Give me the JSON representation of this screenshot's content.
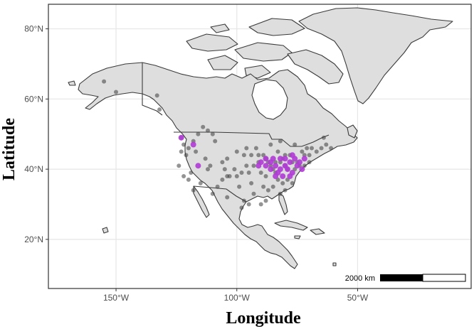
{
  "chart_data": {
    "type": "scatter",
    "map": "North America",
    "xlabel": "Longitude",
    "ylabel": "Latitude",
    "xlim": [
      -178,
      -3
    ],
    "ylim": [
      6,
      87
    ],
    "x_ticks": [
      {
        "value": -150,
        "label": "150°W"
      },
      {
        "value": -100,
        "label": "100°W"
      },
      {
        "value": -50,
        "label": "50°W"
      }
    ],
    "y_ticks": [
      {
        "value": 20,
        "label": "20°N"
      },
      {
        "value": 40,
        "label": "40°N"
      },
      {
        "value": 60,
        "label": "60°N"
      },
      {
        "value": 80,
        "label": "80°N"
      }
    ],
    "grid": true,
    "legend": "none",
    "colors": {
      "background": "#ffffff",
      "land": "#dedede",
      "outline": "#3a3a3a",
      "grid": "#e6e6e6",
      "highlight": "#b03ad6",
      "points": "#3c3c3c"
    },
    "scale_bar": {
      "label": "2000 km"
    },
    "series": [
      {
        "color": "#3c3c3c",
        "points": [
          [
            -155,
            65
          ],
          [
            -150,
            62
          ],
          [
            -133,
            61
          ],
          [
            -132,
            57
          ],
          [
            -123,
            49
          ],
          [
            -122,
            47
          ],
          [
            -123,
            45
          ],
          [
            -121,
            44
          ],
          [
            -120,
            46
          ],
          [
            -118,
            48
          ],
          [
            -116,
            50
          ],
          [
            -114,
            52
          ],
          [
            -112,
            51
          ],
          [
            -110,
            50
          ],
          [
            -109,
            48
          ],
          [
            -117,
            45
          ],
          [
            -113,
            43
          ],
          [
            -111,
            41
          ],
          [
            -112,
            40
          ],
          [
            -105,
            40
          ],
          [
            -106,
            42
          ],
          [
            -104,
            43
          ],
          [
            -101,
            40
          ],
          [
            -103,
            38
          ],
          [
            -99,
            35
          ],
          [
            -97,
            44
          ],
          [
            -94,
            44
          ],
          [
            -96,
            46
          ],
          [
            -92,
            46
          ],
          [
            -93,
            41
          ],
          [
            -91,
            42
          ],
          [
            -89,
            44
          ],
          [
            -88,
            43
          ],
          [
            -87,
            42
          ],
          [
            -90,
            39
          ],
          [
            -88,
            38
          ],
          [
            -86,
            41
          ],
          [
            -85,
            40
          ],
          [
            -84,
            42
          ],
          [
            -83,
            45
          ],
          [
            -81,
            43
          ],
          [
            -80,
            41
          ],
          [
            -79,
            40
          ],
          [
            -78,
            44
          ],
          [
            -77,
            42
          ],
          [
            -76,
            40
          ],
          [
            -75,
            42
          ],
          [
            -73,
            45
          ],
          [
            -72,
            44
          ],
          [
            -71,
            46
          ],
          [
            -70,
            44
          ],
          [
            -69,
            46
          ],
          [
            -67,
            45
          ],
          [
            -65,
            46
          ],
          [
            -63,
            47
          ],
          [
            -61,
            46
          ],
          [
            -64,
            49
          ],
          [
            -76,
            47
          ],
          [
            -82,
            48
          ],
          [
            -86,
            47
          ],
          [
            -79,
            37
          ],
          [
            -81,
            36
          ],
          [
            -83,
            37
          ],
          [
            -85,
            35
          ],
          [
            -87,
            34
          ],
          [
            -89,
            35
          ],
          [
            -84,
            39
          ],
          [
            -94,
            36
          ],
          [
            -95,
            39
          ],
          [
            -98,
            39
          ],
          [
            -100,
            38
          ],
          [
            -93,
            33
          ],
          [
            -88,
            31
          ],
          [
            -82,
            33
          ],
          [
            -80,
            34
          ],
          [
            -77,
            36
          ],
          [
            -110,
            33
          ],
          [
            -108,
            35
          ],
          [
            -115,
            36
          ],
          [
            -118,
            34
          ],
          [
            -120,
            37
          ],
          [
            -122,
            38
          ],
          [
            -124,
            41
          ],
          [
            -119,
            39
          ],
          [
            -104,
            32
          ],
          [
            -97,
            31
          ],
          [
            -98,
            29
          ],
          [
            -90,
            30
          ],
          [
            -95,
            30
          ],
          [
            -104,
            38
          ],
          [
            -106,
            37
          ],
          [
            -72,
            41
          ],
          [
            -74,
            41
          ],
          [
            -70,
            42
          ],
          [
            -80,
            44
          ],
          [
            -82,
            42
          ],
          [
            -91,
            44
          ],
          [
            -96,
            41
          ],
          [
            -100,
            45
          ]
        ]
      },
      {
        "color": "#b03ad6",
        "points": [
          [
            -123,
            49
          ],
          [
            -118,
            47
          ],
          [
            -116,
            41
          ],
          [
            -90,
            42
          ],
          [
            -88,
            41
          ],
          [
            -86,
            42
          ],
          [
            -84,
            41
          ],
          [
            -82,
            40
          ],
          [
            -80,
            41
          ],
          [
            -78,
            42
          ],
          [
            -76,
            43
          ],
          [
            -74,
            42
          ],
          [
            -72,
            43
          ],
          [
            -83,
            39
          ],
          [
            -81,
            38
          ],
          [
            -79,
            40
          ],
          [
            -77,
            39
          ],
          [
            -75,
            41
          ],
          [
            -86,
            40
          ],
          [
            -85,
            43
          ],
          [
            -88,
            43
          ],
          [
            -91,
            41
          ],
          [
            -80,
            43
          ],
          [
            -73,
            40
          ],
          [
            -77,
            44
          ],
          [
            -82,
            43
          ],
          [
            -84,
            38
          ],
          [
            -78,
            38
          ]
        ]
      }
    ]
  }
}
